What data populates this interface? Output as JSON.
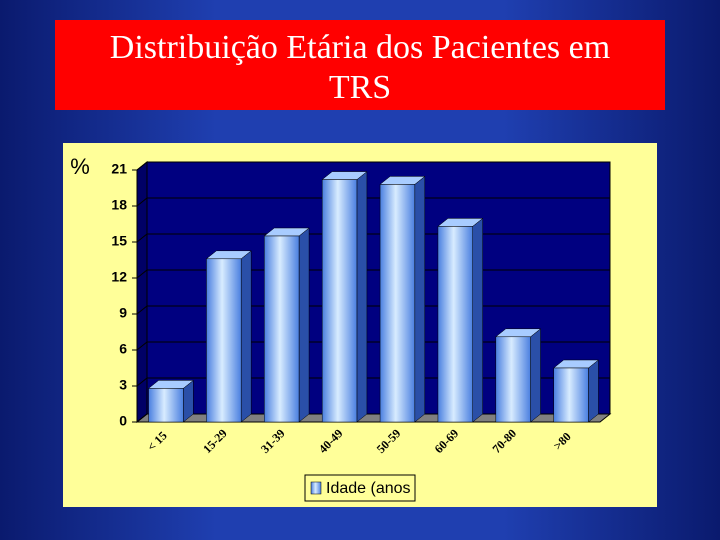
{
  "title": "Distribuição Etária dos Pacientes em TRS",
  "chart_data": {
    "type": "bar",
    "y_label": "%",
    "categories": [
      "< 15",
      "15-29",
      "31-39",
      "40-49",
      "50-59",
      "60-69",
      "70-80",
      ">80"
    ],
    "series": [
      {
        "name": "Idade (anos",
        "color": "#6fa8ff",
        "values": [
          2.8,
          13.6,
          15.5,
          20.2,
          19.8,
          16.3,
          7.1,
          4.5
        ]
      }
    ],
    "ylim": [
      0,
      21
    ],
    "yticks": [
      0,
      3,
      6,
      9,
      12,
      15,
      18,
      21
    ],
    "grid": true,
    "legend": "bottom"
  }
}
